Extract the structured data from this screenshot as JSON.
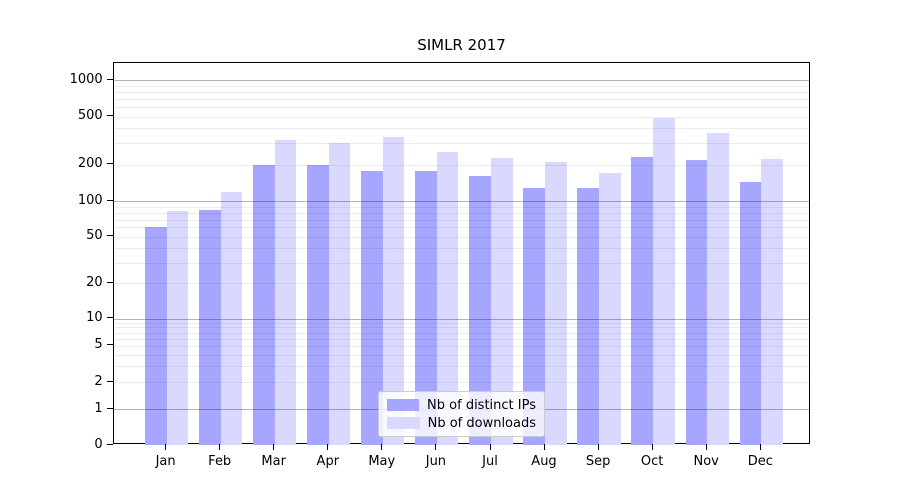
{
  "title": "SIMLR 2017",
  "chart_data": {
    "type": "bar",
    "title": "SIMLR 2017",
    "categories": [
      "Jan 2017",
      "Feb 2017",
      "Mar 2017",
      "Apr 2017",
      "May 2017",
      "Jun 2017",
      "Jul 2017",
      "Aug 2017",
      "Sep 2017",
      "Oct 2017",
      "Nov 2017",
      "Dec 2017"
    ],
    "series": [
      {
        "name": "Nb of distinct IPs",
        "color": "#a6a6ff",
        "values": [
          61,
          84,
          200,
          200,
          178,
          177,
          161,
          129,
          129,
          232,
          220,
          145
        ]
      },
      {
        "name": "Nb of downloads",
        "color": "#d9d9ff",
        "values": [
          82,
          120,
          320,
          300,
          340,
          255,
          226,
          210,
          172,
          483,
          368,
          225
        ]
      }
    ],
    "xlabel": "",
    "ylabel": "",
    "yscale": "symlog",
    "yticks": [
      0,
      1,
      2,
      5,
      10,
      20,
      50,
      100,
      200,
      500,
      1000
    ],
    "ylim": [
      0,
      1300
    ],
    "grid": "horizontal major and minor gridlines drawn above bars",
    "legend_position": "inside plot, lower center",
    "bar_group": "two bars per month, dark left / light right"
  }
}
